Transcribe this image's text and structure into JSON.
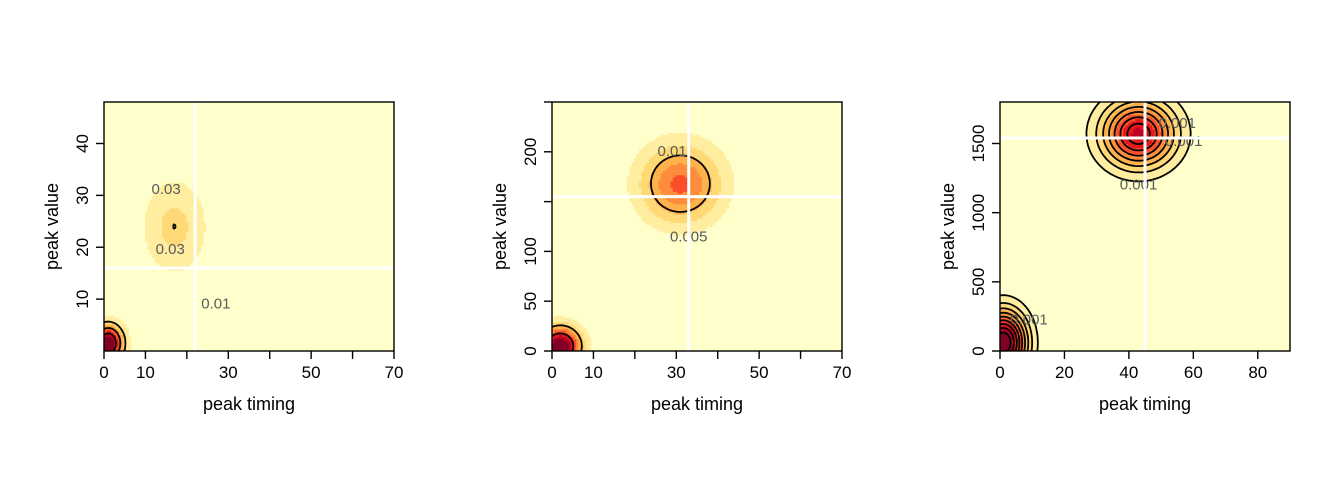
{
  "chart_data": [
    {
      "type": "heatmap",
      "xlabel": "peak timing",
      "ylabel": "peak value",
      "xlim": [
        0,
        70
      ],
      "ylim": [
        0,
        48
      ],
      "x_ticks": [
        0,
        10,
        20,
        30,
        40,
        50,
        60,
        70
      ],
      "x_tick_labels": [
        "0",
        "10",
        "",
        "30",
        "",
        "50",
        "",
        "70"
      ],
      "y_ticks": [
        10,
        20,
        30,
        40
      ],
      "y_tick_labels": [
        "10",
        "20",
        "30",
        "40"
      ],
      "reference_lines": {
        "x": 22,
        "y": 16
      },
      "density_modes": [
        {
          "x": 17,
          "y": 24,
          "sx": 5.5,
          "sy": 6.5,
          "weight": 1.0
        },
        {
          "x": 1,
          "y": 1.5,
          "sx": 2.5,
          "sy": 2.5,
          "weight": 4.0
        }
      ],
      "contour_levels": [
        0.01,
        0.03,
        0.05
      ],
      "contour_labels": [
        {
          "text": "0.03",
          "x": 15,
          "y": 31
        },
        {
          "text": "0.03",
          "x": 16,
          "y": 19.5
        },
        {
          "text": "0.01",
          "x": 27,
          "y": 9
        }
      ]
    },
    {
      "type": "heatmap",
      "xlabel": "peak timing",
      "ylabel": "peak value",
      "xlim": [
        0,
        70
      ],
      "ylim": [
        0,
        250
      ],
      "x_ticks": [
        0,
        10,
        20,
        30,
        40,
        50,
        60,
        70
      ],
      "x_tick_labels": [
        "0",
        "10",
        "",
        "30",
        "",
        "50",
        "",
        "70"
      ],
      "y_ticks": [
        0,
        50,
        100,
        150,
        200,
        250
      ],
      "y_tick_labels": [
        "0",
        "50",
        "100",
        "",
        "200",
        ""
      ],
      "reference_lines": {
        "x": 33,
        "y": 155
      },
      "density_modes": [
        {
          "x": 31,
          "y": 168,
          "sx": 7,
          "sy": 28,
          "weight": 1.0
        },
        {
          "x": 2,
          "y": 5,
          "sx": 3.5,
          "sy": 14,
          "weight": 1.8
        }
      ],
      "contour_levels": [
        0.005,
        0.01
      ],
      "contour_labels": [
        {
          "text": "0.01",
          "x": 29,
          "y": 200
        },
        {
          "text": "0.005",
          "x": 33,
          "y": 114
        }
      ]
    },
    {
      "type": "heatmap",
      "xlabel": "peak timing",
      "ylabel": "peak value",
      "xlim": [
        0,
        90
      ],
      "ylim": [
        0,
        1800
      ],
      "x_ticks": [
        0,
        20,
        40,
        60,
        80
      ],
      "x_tick_labels": [
        "0",
        "20",
        "40",
        "60",
        "80"
      ],
      "y_ticks": [
        0,
        500,
        1000,
        1500
      ],
      "y_tick_labels": [
        "0",
        "500",
        "1000",
        "1500"
      ],
      "reference_lines": {
        "x": 45,
        "y": 1540
      },
      "density_modes": [
        {
          "x": 43,
          "y": 1570,
          "sx": 8,
          "sy": 170,
          "weight": 1.0
        },
        {
          "x": 1,
          "y": 60,
          "sx": 5,
          "sy": 160,
          "weight": 1.3
        }
      ],
      "contour_levels": [
        0.001,
        0.002,
        0.003,
        0.004,
        0.005,
        0.006,
        0.007,
        0.008,
        0.009
      ],
      "contour_labels": [
        {
          "text": "0.001",
          "x": 43,
          "y": 1195
        },
        {
          "text": "0.001",
          "x": 9,
          "y": 220
        },
        {
          "text": "0.001",
          "x": 57,
          "y": 1510
        },
        {
          "text": "0.001",
          "x": 55,
          "y": 1640
        }
      ]
    }
  ],
  "colors": {
    "background": "#ffffcc",
    "palette": [
      "#ffffcc",
      "#ffeda0",
      "#fed976",
      "#feb24c",
      "#fd8d3c",
      "#fc4e2a",
      "#e31a1c",
      "#bd0026",
      "#800026"
    ],
    "contour": "#000000",
    "reference_line": "#ffffff"
  }
}
